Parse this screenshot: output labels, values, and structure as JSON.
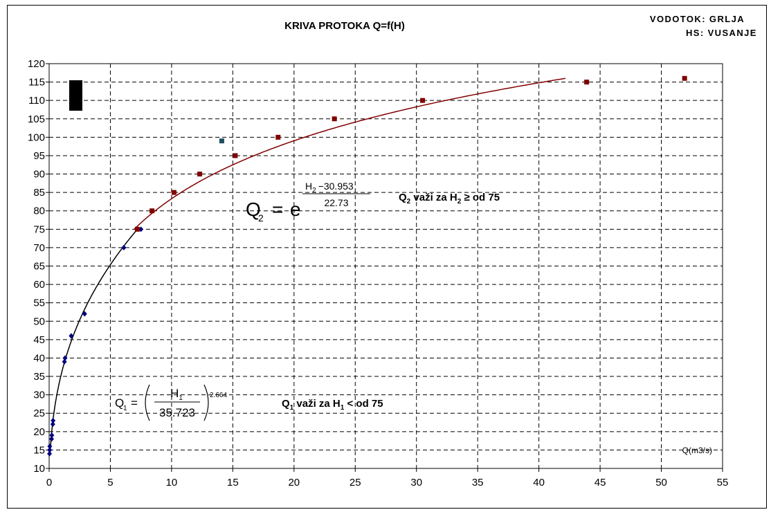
{
  "chart_data": {
    "type": "scatter",
    "title": "KRIVA PROTOKA Q=f(H)",
    "station": {
      "watercourse": "VODOTOK: GRLJA",
      "gauge": "HS: VUSANJE"
    },
    "x_unit_label": "Q(m3/s)",
    "xlim": [
      0,
      55
    ],
    "ylim": [
      10,
      120
    ],
    "x_ticks": [
      0,
      5,
      10,
      15,
      20,
      25,
      30,
      35,
      40,
      45,
      50,
      55
    ],
    "y_ticks": [
      10,
      15,
      20,
      25,
      30,
      35,
      40,
      45,
      50,
      55,
      60,
      65,
      70,
      75,
      80,
      85,
      90,
      95,
      100,
      105,
      110,
      115,
      120
    ],
    "grid": true,
    "series": [
      {
        "color": "#000080",
        "marker": "diamond",
        "points": [
          [
            0.03,
            14
          ],
          [
            0.04,
            15
          ],
          [
            0.05,
            16
          ],
          [
            0.2,
            18
          ],
          [
            0.22,
            19
          ],
          [
            0.3,
            22
          ],
          [
            0.32,
            23
          ],
          [
            1.25,
            39
          ],
          [
            1.3,
            40
          ],
          [
            1.8,
            46
          ],
          [
            2.9,
            52
          ],
          [
            6.1,
            70
          ],
          [
            7.5,
            75
          ]
        ]
      },
      {
        "color": "#800000",
        "marker": "square",
        "points": [
          [
            7.2,
            75
          ],
          [
            8.4,
            80
          ],
          [
            10.2,
            85
          ],
          [
            12.3,
            90
          ],
          [
            15.2,
            95
          ],
          [
            18.7,
            100
          ],
          [
            23.3,
            105
          ],
          [
            30.5,
            110
          ],
          [
            43.9,
            115
          ],
          [
            51.9,
            116
          ]
        ]
      },
      {
        "color": "#1f4f5f",
        "marker": "square",
        "points": [
          [
            14.1,
            99
          ]
        ]
      }
    ],
    "fits": [
      {
        "color": "#000000",
        "h_from": 14,
        "h_to": 75,
        "coef": 35.723,
        "exponent": 2.664
      },
      {
        "color": "#800000",
        "h_from": 75,
        "h_to": 116,
        "offset": 30.953,
        "divisor": 22.73
      }
    ],
    "equation_1": {
      "q": "Q",
      "q_sub": "1",
      "h": "H",
      "h_sub": "1",
      "denominator": "35.723",
      "exponent": "2.664"
    },
    "equation_2": {
      "q": "Q",
      "q_sub": "2",
      "base": "e",
      "h": "H",
      "h_sub": "2",
      "numerator_rest": "−30.953",
      "denominator": "22.73"
    },
    "notes": {
      "q1": {
        "q": "Q",
        "q_sub": "1",
        "mid": " važi za H",
        "h_sub": "1",
        "end": " < od 75"
      },
      "q2": {
        "q": "Q",
        "q_sub": "2",
        "mid": " važi za H",
        "h_sub": "2",
        "end": " ≥ od 75"
      }
    },
    "legend_key_color": "#000000"
  }
}
